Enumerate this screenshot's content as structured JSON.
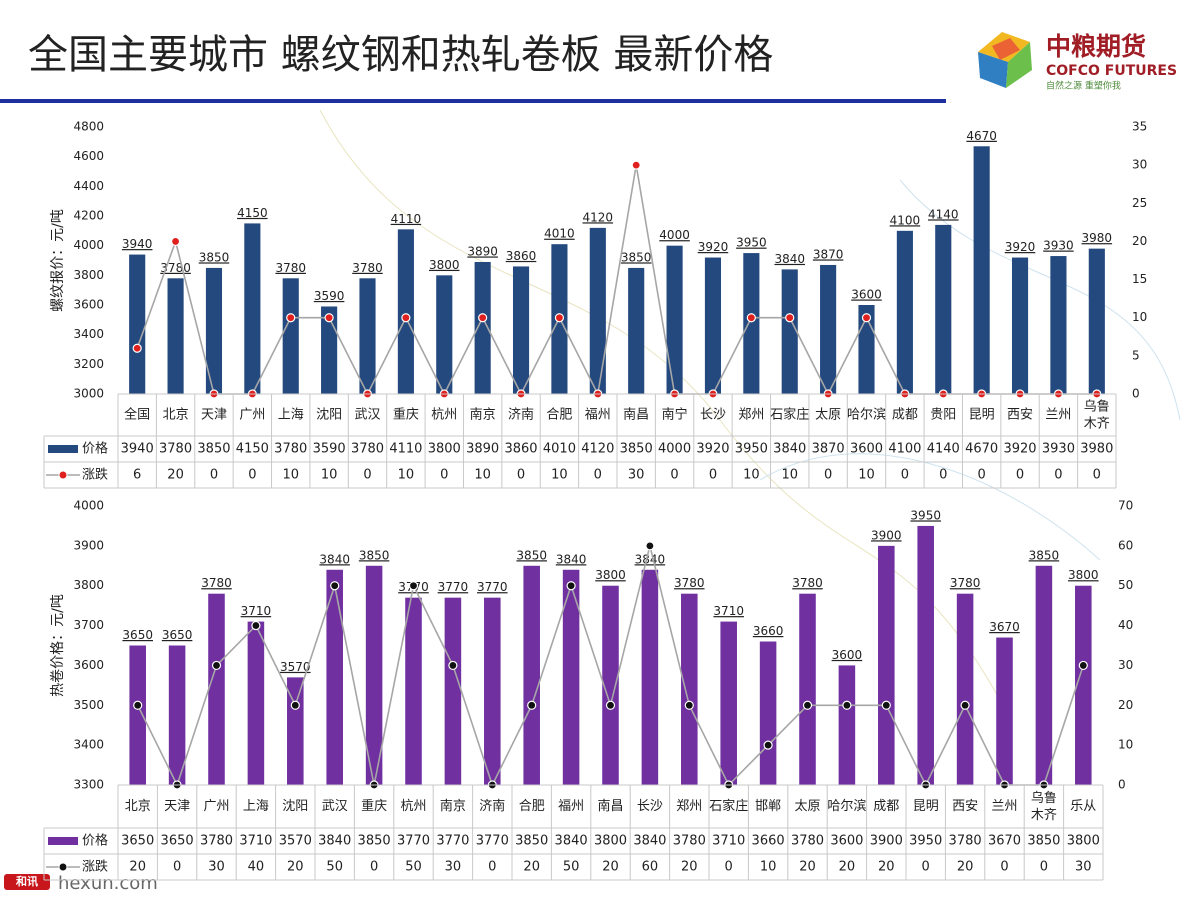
{
  "title": "全国主要城市  螺纹钢和热轧卷板    最新价格",
  "logo": {
    "name": "中粮期货",
    "english": "COFCO FUTURES",
    "slogan": "自然之源 重塑你我"
  },
  "footer": {
    "badge": "和讯",
    "site": "hexun.com"
  },
  "chart_data": [
    {
      "type": "combo",
      "ylabel": "螺纹报价：元/吨",
      "data_table": true,
      "data_labels": true,
      "grid": false,
      "categories": [
        "全国",
        "北京",
        "天津",
        "广州",
        "上海",
        "沈阳",
        "武汉",
        "重庆",
        "杭州",
        "南京",
        "济南",
        "合肥",
        "福州",
        "南昌",
        "南宁",
        "长沙",
        "郑州",
        "石家庄",
        "太原",
        "哈尔滨",
        "成都",
        "贵阳",
        "昆明",
        "西安",
        "兰州",
        "乌鲁木齐"
      ],
      "series": [
        {
          "name": "价格",
          "kind": "bar",
          "color": "#23497e",
          "axis": "y",
          "values": [
            3940,
            3780,
            3850,
            4150,
            3780,
            3590,
            3780,
            4110,
            3800,
            3890,
            3860,
            4010,
            4120,
            3850,
            4000,
            3920,
            3950,
            3840,
            3870,
            3600,
            4100,
            4140,
            4670,
            3920,
            3930,
            3980
          ]
        },
        {
          "name": "涨跌",
          "kind": "line",
          "color": "#a6a6a6",
          "marker_color": "#e0201f",
          "axis": "y2",
          "values": [
            6,
            20,
            0,
            0,
            10,
            10,
            0,
            10,
            0,
            10,
            0,
            10,
            0,
            30,
            0,
            0,
            10,
            10,
            0,
            10,
            0,
            0,
            0,
            0,
            0,
            0
          ]
        }
      ],
      "ylim": [
        3000,
        4800
      ],
      "yticks": [
        3000,
        3200,
        3400,
        3600,
        3800,
        4000,
        4200,
        4400,
        4600,
        4800
      ],
      "y2lim": [
        0,
        35
      ],
      "y2ticks": [
        0,
        5,
        10,
        15,
        20,
        25,
        30,
        35
      ]
    },
    {
      "type": "combo",
      "ylabel": "热卷价格：元/吨",
      "data_table": true,
      "data_labels": true,
      "grid": false,
      "categories": [
        "北京",
        "天津",
        "广州",
        "上海",
        "沈阳",
        "武汉",
        "重庆",
        "杭州",
        "南京",
        "济南",
        "合肥",
        "福州",
        "南昌",
        "长沙",
        "郑州",
        "石家庄",
        "邯郸",
        "太原",
        "哈尔滨",
        "成都",
        "昆明",
        "西安",
        "兰州",
        "乌鲁木齐",
        "乐从"
      ],
      "series": [
        {
          "name": "价格",
          "kind": "bar",
          "color": "#7030a0",
          "axis": "y",
          "values": [
            3650,
            3650,
            3780,
            3710,
            3570,
            3840,
            3850,
            3770,
            3770,
            3770,
            3850,
            3840,
            3800,
            3840,
            3780,
            3710,
            3660,
            3780,
            3600,
            3900,
            3950,
            3780,
            3670,
            3850,
            3800
          ]
        },
        {
          "name": "涨跌",
          "kind": "line",
          "color": "#a6a6a6",
          "marker_color": "#111111",
          "axis": "y2",
          "values": [
            20,
            0,
            30,
            40,
            20,
            50,
            0,
            50,
            30,
            0,
            20,
            50,
            20,
            60,
            20,
            0,
            10,
            20,
            20,
            20,
            0,
            20,
            0,
            0,
            30
          ]
        }
      ],
      "ylim": [
        3300,
        4000
      ],
      "yticks": [
        3300,
        3400,
        3500,
        3600,
        3700,
        3800,
        3900,
        4000
      ],
      "y2lim": [
        0,
        70
      ],
      "y2ticks": [
        0,
        10,
        20,
        30,
        40,
        50,
        60,
        70
      ]
    }
  ]
}
